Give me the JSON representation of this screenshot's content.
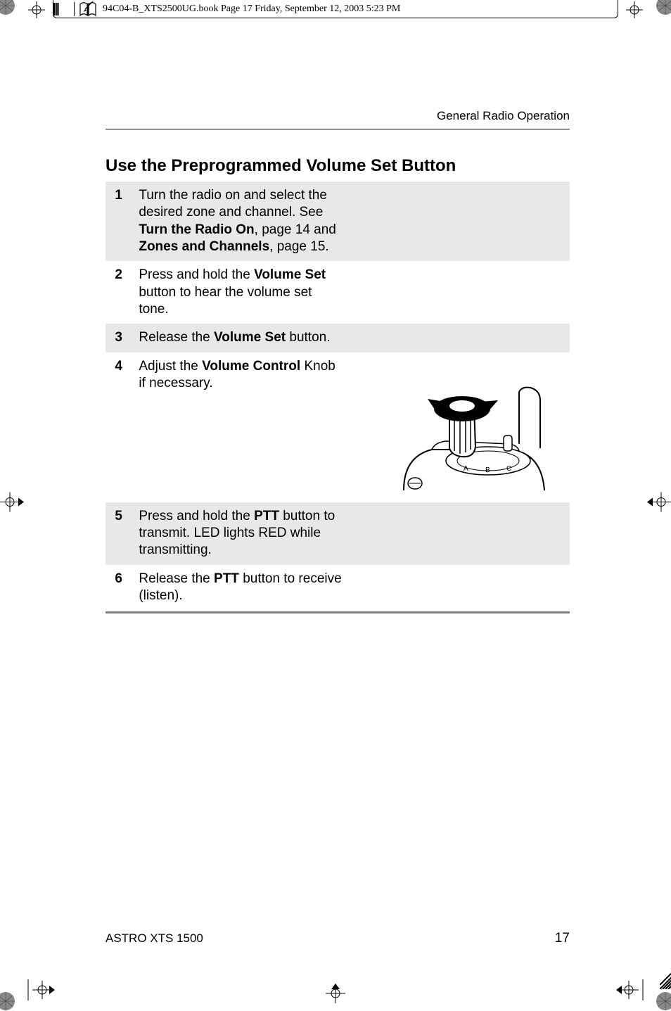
{
  "header": {
    "filename_line": "94C04-B_XTS2500UG.book  Page 17  Friday, September 12, 2003  5:23 PM"
  },
  "page": {
    "running_head": "General Radio Operation",
    "section_title": "Use the Preprogrammed Volume Set Button"
  },
  "steps": [
    {
      "num": "1",
      "shaded": true,
      "parts": [
        {
          "t": "Turn the radio on and select the desired zone and channel. See ",
          "b": false
        },
        {
          "t": "Turn the Radio On",
          "b": true
        },
        {
          "t": ", page 14 and ",
          "b": false
        },
        {
          "t": "Zones and Channels",
          "b": true
        },
        {
          "t": ", page 15.",
          "b": false
        }
      ]
    },
    {
      "num": "2",
      "shaded": false,
      "parts": [
        {
          "t": "Press and hold the ",
          "b": false
        },
        {
          "t": "Volume Set",
          "b": true
        },
        {
          "t": " button to hear the volume set tone.",
          "b": false
        }
      ]
    },
    {
      "num": "3",
      "shaded": true,
      "parts": [
        {
          "t": "Release the ",
          "b": false
        },
        {
          "t": "Volume Set",
          "b": true
        },
        {
          "t": " button.",
          "b": false
        }
      ]
    },
    {
      "num": "4",
      "shaded": false,
      "has_image": true,
      "parts": [
        {
          "t": "Adjust the ",
          "b": false
        },
        {
          "t": "Volume Control",
          "b": true
        },
        {
          "t": " Knob if necessary.",
          "b": false
        }
      ]
    },
    {
      "num": "5",
      "shaded": true,
      "parts": [
        {
          "t": "Press and hold the ",
          "b": false
        },
        {
          "t": "PTT",
          "b": true
        },
        {
          "t": " button to transmit. LED lights RED while transmitting.",
          "b": false
        }
      ]
    },
    {
      "num": "6",
      "shaded": false,
      "parts": [
        {
          "t": "Release the ",
          "b": false
        },
        {
          "t": "PTT",
          "b": true
        },
        {
          "t": " button to receive (listen).",
          "b": false
        }
      ]
    }
  ],
  "footer": {
    "product": "ASTRO XTS 1500",
    "page_num": "17"
  },
  "knob_image": {
    "labels": [
      "A",
      "B",
      "C"
    ]
  }
}
